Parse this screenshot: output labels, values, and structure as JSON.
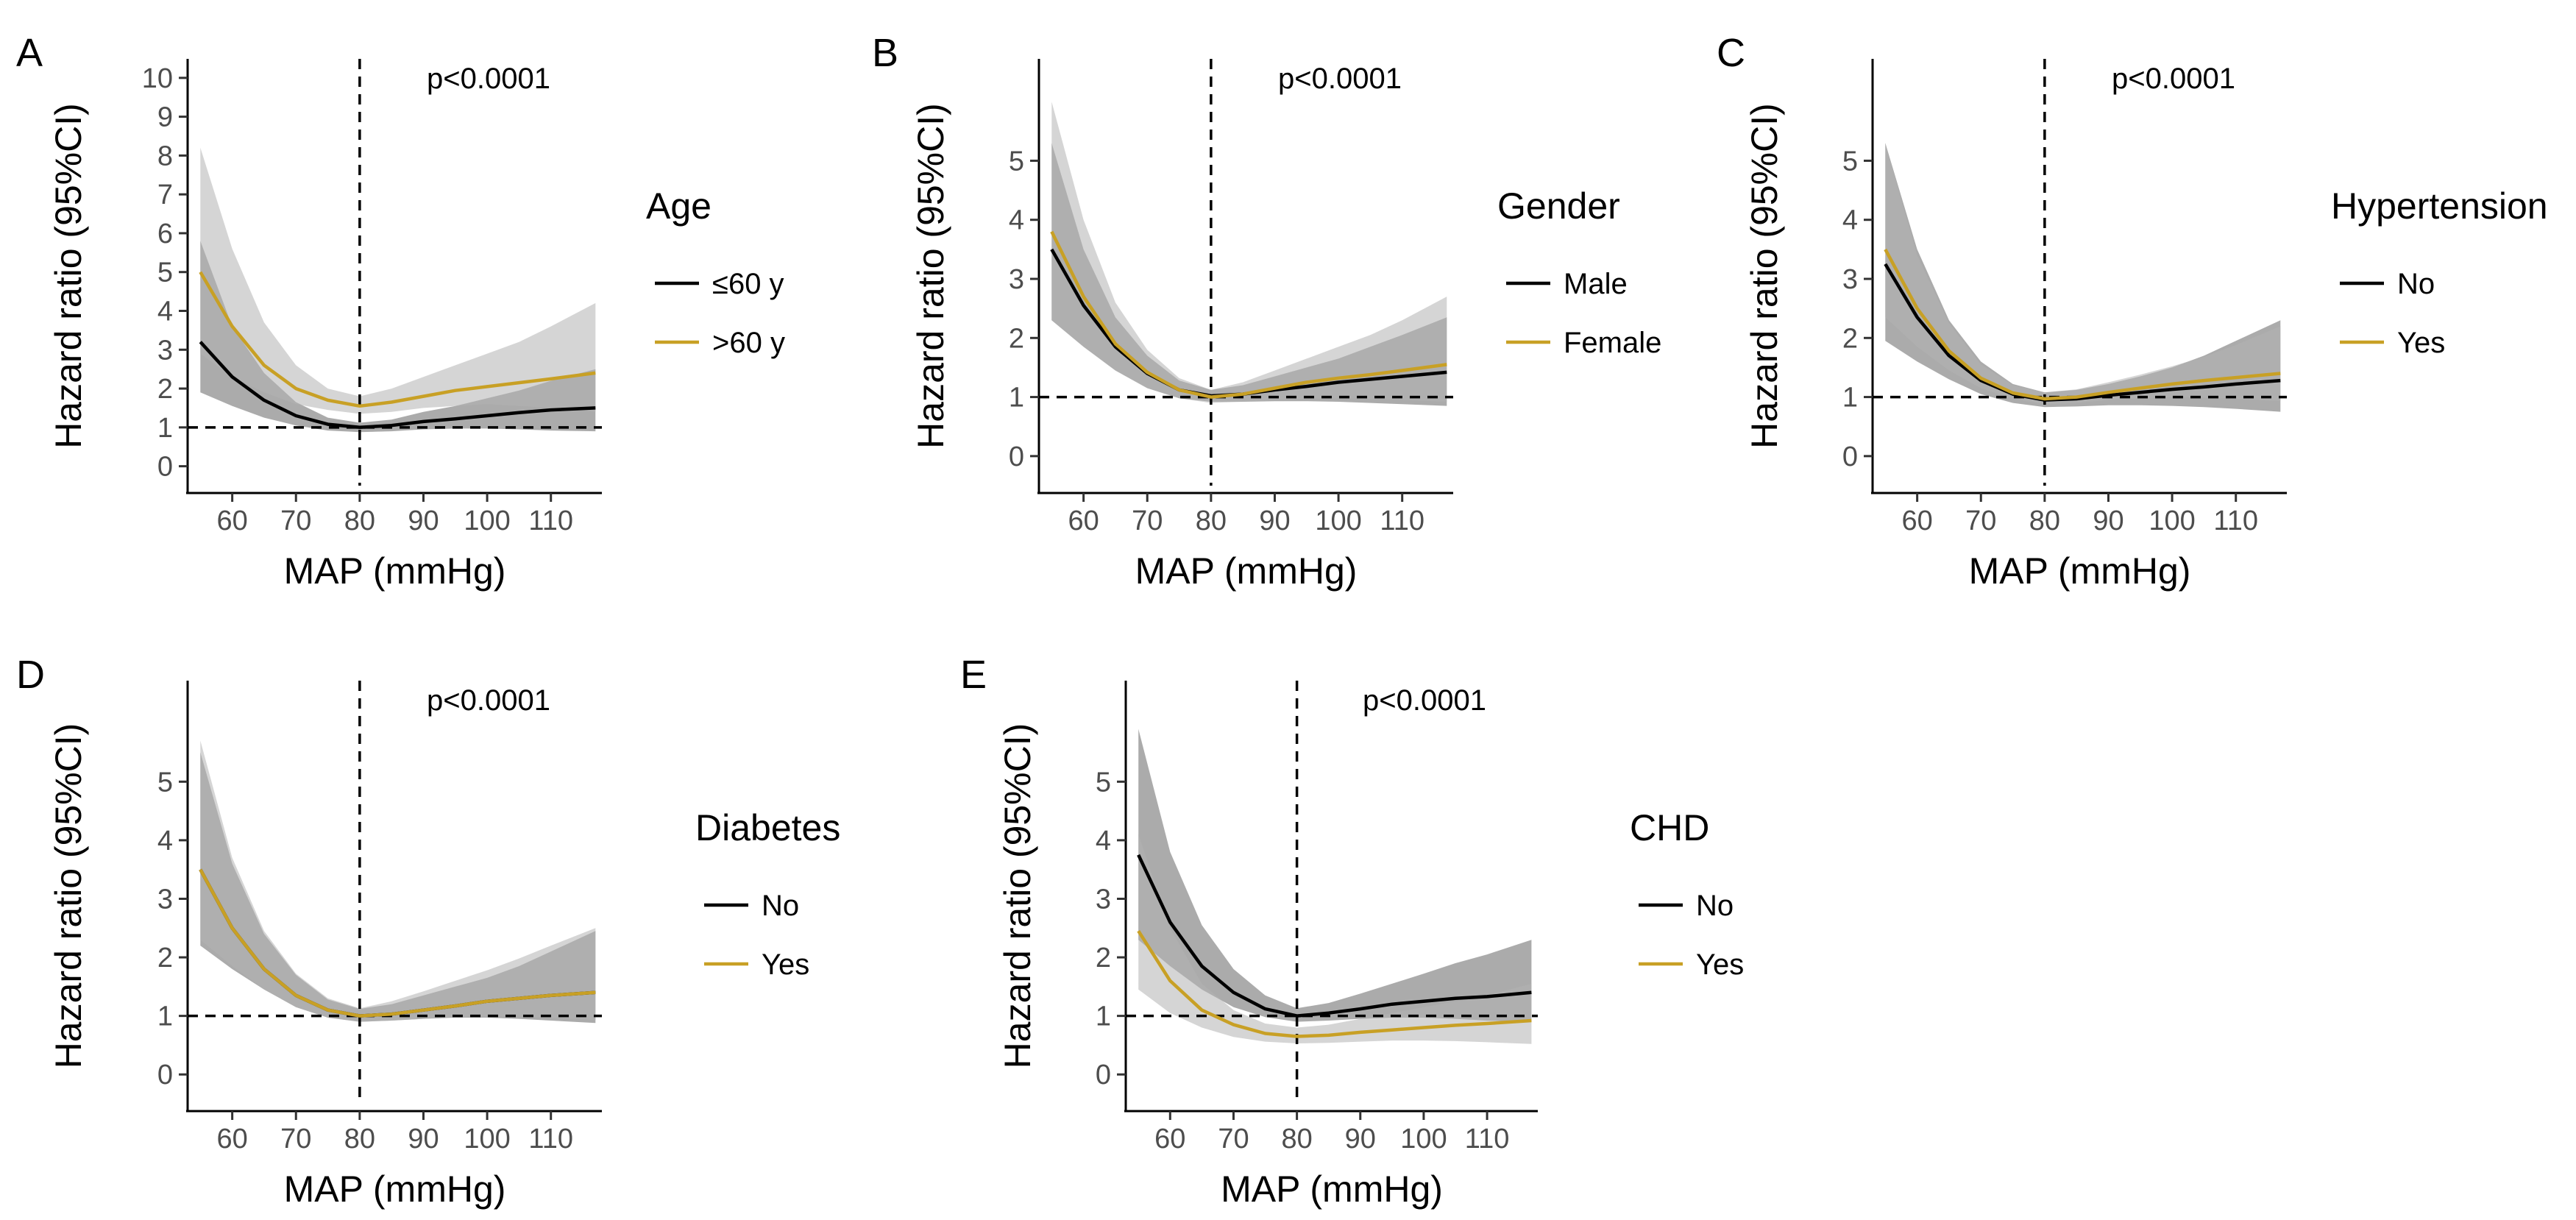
{
  "chart_data": [
    {
      "panel": "A",
      "type": "line",
      "p_value": "p<0.0001",
      "xlabel": "MAP (mmHg)",
      "ylabel": "Hazard ratio (95%CI)",
      "xlim": [
        53,
        118
      ],
      "ylim": [
        -0.5,
        10.3
      ],
      "xticks": [
        60,
        70,
        80,
        90,
        100,
        110
      ],
      "xtick_labels": [
        "60",
        "70",
        "80",
        "90",
        "100",
        "110"
      ],
      "yticks": [
        0,
        1,
        2,
        3,
        4,
        5,
        6,
        7,
        8,
        9,
        10
      ],
      "ytick_labels": [
        "0",
        "1",
        "2",
        "3",
        "4",
        "5",
        "6",
        "7",
        "8",
        "9",
        "10"
      ],
      "vline_x": 80,
      "hline_y": 1,
      "legend": {
        "title": "Age",
        "position": "right"
      },
      "series": [
        {
          "name": "≤60 y",
          "color": "#000000",
          "x": [
            55,
            60,
            65,
            70,
            75,
            80,
            85,
            90,
            95,
            100,
            105,
            110,
            117
          ],
          "y": [
            3.2,
            2.3,
            1.7,
            1.3,
            1.08,
            1.0,
            1.05,
            1.15,
            1.22,
            1.3,
            1.38,
            1.45,
            1.5
          ],
          "lower": [
            1.9,
            1.55,
            1.25,
            1.05,
            0.92,
            0.88,
            0.9,
            0.95,
            0.97,
            0.97,
            0.95,
            0.92,
            0.9
          ],
          "upper": [
            5.8,
            3.6,
            2.4,
            1.65,
            1.25,
            1.12,
            1.2,
            1.4,
            1.55,
            1.75,
            1.95,
            2.2,
            2.5
          ]
        },
        {
          "name": ">60 y",
          "color": "#c8a025",
          "x": [
            55,
            60,
            65,
            70,
            75,
            80,
            85,
            90,
            95,
            100,
            105,
            110,
            117
          ],
          "y": [
            5.0,
            3.6,
            2.6,
            2.0,
            1.7,
            1.55,
            1.65,
            1.8,
            1.95,
            2.05,
            2.15,
            2.25,
            2.4
          ],
          "lower": [
            2.9,
            2.3,
            1.9,
            1.6,
            1.45,
            1.35,
            1.4,
            1.5,
            1.55,
            1.6,
            1.55,
            1.5,
            1.4
          ],
          "upper": [
            8.2,
            5.6,
            3.7,
            2.6,
            2.0,
            1.8,
            2.0,
            2.3,
            2.6,
            2.9,
            3.2,
            3.6,
            4.2
          ]
        }
      ]
    },
    {
      "panel": "B",
      "type": "line",
      "p_value": "p<0.0001",
      "xlabel": "MAP (mmHg)",
      "ylabel": "Hazard ratio (95%CI)",
      "xlim": [
        53,
        118
      ],
      "ylim": [
        -0.5,
        6.6
      ],
      "xticks": [
        60,
        70,
        80,
        90,
        100,
        110
      ],
      "xtick_labels": [
        "60",
        "70",
        "80",
        "90",
        "100",
        "110"
      ],
      "yticks": [
        0,
        1,
        2,
        3,
        4,
        5
      ],
      "ytick_labels": [
        "0",
        "1",
        "2",
        "3",
        "4",
        "5"
      ],
      "vline_x": 80,
      "hline_y": 1,
      "legend": {
        "title": "Gender",
        "position": "right"
      },
      "series": [
        {
          "name": "Male",
          "color": "#000000",
          "x": [
            55,
            60,
            65,
            70,
            75,
            80,
            85,
            90,
            95,
            100,
            105,
            110,
            117
          ],
          "y": [
            3.5,
            2.55,
            1.85,
            1.4,
            1.12,
            1.02,
            1.05,
            1.12,
            1.18,
            1.25,
            1.3,
            1.35,
            1.42
          ],
          "lower": [
            2.3,
            1.85,
            1.45,
            1.15,
            0.98,
            0.92,
            0.92,
            0.93,
            0.93,
            0.92,
            0.9,
            0.88,
            0.85
          ],
          "upper": [
            5.3,
            3.5,
            2.35,
            1.7,
            1.28,
            1.12,
            1.2,
            1.35,
            1.5,
            1.65,
            1.85,
            2.05,
            2.35
          ]
        },
        {
          "name": "Female",
          "color": "#c8a025",
          "x": [
            55,
            60,
            65,
            70,
            75,
            80,
            85,
            90,
            95,
            100,
            105,
            110,
            117
          ],
          "y": [
            3.8,
            2.7,
            1.9,
            1.42,
            1.12,
            1.0,
            1.05,
            1.15,
            1.25,
            1.32,
            1.38,
            1.45,
            1.55
          ],
          "lower": [
            2.3,
            1.85,
            1.45,
            1.15,
            0.98,
            0.9,
            0.92,
            0.95,
            0.97,
            0.98,
            0.97,
            0.95,
            0.92
          ],
          "upper": [
            6.0,
            4.0,
            2.6,
            1.8,
            1.32,
            1.12,
            1.25,
            1.45,
            1.65,
            1.85,
            2.05,
            2.3,
            2.7
          ]
        }
      ]
    },
    {
      "panel": "C",
      "type": "line",
      "p_value": "p<0.0001",
      "xlabel": "MAP (mmHg)",
      "ylabel": "Hazard ratio (95%CI)",
      "xlim": [
        53,
        118
      ],
      "ylim": [
        -0.5,
        6.6
      ],
      "xticks": [
        60,
        70,
        80,
        90,
        100,
        110
      ],
      "xtick_labels": [
        "60",
        "70",
        "80",
        "90",
        "100",
        "110"
      ],
      "yticks": [
        0,
        1,
        2,
        3,
        4,
        5
      ],
      "ytick_labels": [
        "0",
        "1",
        "2",
        "3",
        "4",
        "5"
      ],
      "vline_x": 80,
      "hline_y": 1,
      "legend": {
        "title": "Hypertension",
        "position": "right"
      },
      "series": [
        {
          "name": "No",
          "color": "#000000",
          "x": [
            55,
            60,
            65,
            70,
            75,
            80,
            85,
            90,
            95,
            100,
            105,
            110,
            117
          ],
          "y": [
            3.25,
            2.35,
            1.7,
            1.28,
            1.05,
            0.95,
            0.97,
            1.03,
            1.08,
            1.13,
            1.17,
            1.22,
            1.28
          ],
          "lower": [
            1.95,
            1.6,
            1.3,
            1.05,
            0.9,
            0.83,
            0.84,
            0.86,
            0.86,
            0.85,
            0.83,
            0.8,
            0.75
          ],
          "upper": [
            5.3,
            3.5,
            2.3,
            1.6,
            1.22,
            1.08,
            1.12,
            1.22,
            1.35,
            1.5,
            1.7,
            1.95,
            2.3
          ]
        },
        {
          "name": "Yes",
          "color": "#c8a025",
          "x": [
            55,
            60,
            65,
            70,
            75,
            80,
            85,
            90,
            95,
            100,
            105,
            110,
            117
          ],
          "y": [
            3.5,
            2.5,
            1.78,
            1.32,
            1.07,
            0.97,
            1.0,
            1.08,
            1.15,
            1.22,
            1.28,
            1.33,
            1.4
          ],
          "lower": [
            2.35,
            1.85,
            1.45,
            1.15,
            0.97,
            0.88,
            0.9,
            0.95,
            0.98,
            1.0,
            0.99,
            0.97,
            0.93
          ],
          "upper": [
            5.3,
            3.4,
            2.25,
            1.55,
            1.2,
            1.08,
            1.13,
            1.25,
            1.38,
            1.52,
            1.68,
            1.88,
            2.2
          ]
        }
      ]
    },
    {
      "panel": "D",
      "type": "line",
      "p_value": "p<0.0001",
      "xlabel": "MAP (mmHg)",
      "ylabel": "Hazard ratio (95%CI)",
      "xlim": [
        53,
        118
      ],
      "ylim": [
        -0.5,
        6.6
      ],
      "xticks": [
        60,
        70,
        80,
        90,
        100,
        110
      ],
      "xtick_labels": [
        "60",
        "70",
        "80",
        "90",
        "100",
        "110"
      ],
      "yticks": [
        0,
        1,
        2,
        3,
        4,
        5
      ],
      "ytick_labels": [
        "0",
        "1",
        "2",
        "3",
        "4",
        "5"
      ],
      "vline_x": 80,
      "hline_y": 1,
      "legend": {
        "title": "Diabetes",
        "position": "right"
      },
      "series": [
        {
          "name": "No",
          "color": "#000000",
          "x": [
            55,
            60,
            65,
            70,
            75,
            80,
            85,
            90,
            95,
            100,
            105,
            110,
            117
          ],
          "y": [
            3.5,
            2.5,
            1.8,
            1.35,
            1.1,
            1.0,
            1.03,
            1.1,
            1.17,
            1.25,
            1.3,
            1.35,
            1.4
          ],
          "lower": [
            2.2,
            1.8,
            1.45,
            1.15,
            0.97,
            0.9,
            0.92,
            0.95,
            0.97,
            0.97,
            0.95,
            0.92,
            0.88
          ],
          "upper": [
            5.5,
            3.6,
            2.4,
            1.7,
            1.28,
            1.12,
            1.2,
            1.35,
            1.5,
            1.65,
            1.85,
            2.1,
            2.45
          ]
        },
        {
          "name": "Yes",
          "color": "#c8a025",
          "x": [
            55,
            60,
            65,
            70,
            75,
            80,
            85,
            90,
            95,
            100,
            105,
            110,
            117
          ],
          "y": [
            3.5,
            2.5,
            1.8,
            1.35,
            1.1,
            1.0,
            1.03,
            1.1,
            1.17,
            1.25,
            1.3,
            1.35,
            1.4
          ],
          "lower": [
            2.3,
            1.85,
            1.45,
            1.15,
            0.97,
            0.9,
            0.92,
            0.95,
            0.98,
            1.0,
            0.99,
            0.97,
            0.93
          ],
          "upper": [
            5.7,
            3.7,
            2.45,
            1.72,
            1.3,
            1.13,
            1.25,
            1.42,
            1.6,
            1.78,
            1.98,
            2.2,
            2.5
          ]
        }
      ]
    },
    {
      "panel": "E",
      "type": "line",
      "p_value": "p<0.0001",
      "xlabel": "MAP (mmHg)",
      "ylabel": "Hazard ratio (95%CI)",
      "xlim": [
        53,
        118
      ],
      "ylim": [
        -0.5,
        6.6
      ],
      "xticks": [
        60,
        70,
        80,
        90,
        100,
        110
      ],
      "xtick_labels": [
        "60",
        "70",
        "80",
        "90",
        "100",
        "110"
      ],
      "yticks": [
        0,
        1,
        2,
        3,
        4,
        5
      ],
      "ytick_labels": [
        "0",
        "1",
        "2",
        "3",
        "4",
        "5"
      ],
      "vline_x": 80,
      "hline_y": 1,
      "legend": {
        "title": "CHD",
        "position": "right"
      },
      "series": [
        {
          "name": "No",
          "color": "#000000",
          "x": [
            55,
            60,
            65,
            70,
            75,
            80,
            85,
            90,
            95,
            100,
            105,
            110,
            117
          ],
          "y": [
            3.75,
            2.6,
            1.85,
            1.4,
            1.12,
            1.0,
            1.05,
            1.12,
            1.2,
            1.25,
            1.3,
            1.33,
            1.4
          ],
          "lower": [
            2.3,
            1.85,
            1.45,
            1.15,
            0.98,
            0.9,
            0.92,
            0.95,
            0.97,
            0.97,
            0.95,
            0.92,
            0.9
          ],
          "upper": [
            5.9,
            3.8,
            2.55,
            1.8,
            1.35,
            1.13,
            1.22,
            1.38,
            1.55,
            1.72,
            1.9,
            2.05,
            2.3
          ]
        },
        {
          "name": "Yes",
          "color": "#c8a025",
          "x": [
            55,
            60,
            65,
            70,
            75,
            80,
            85,
            90,
            95,
            100,
            105,
            110,
            117
          ],
          "y": [
            2.45,
            1.6,
            1.1,
            0.85,
            0.7,
            0.65,
            0.67,
            0.72,
            0.76,
            0.8,
            0.84,
            0.87,
            0.92
          ],
          "lower": [
            1.45,
            1.05,
            0.8,
            0.64,
            0.56,
            0.53,
            0.54,
            0.56,
            0.58,
            0.58,
            0.57,
            0.55,
            0.52
          ],
          "upper": [
            4.1,
            2.5,
            1.55,
            1.1,
            0.87,
            0.8,
            0.85,
            0.95,
            1.05,
            1.15,
            1.25,
            1.35,
            1.55
          ]
        }
      ]
    }
  ]
}
